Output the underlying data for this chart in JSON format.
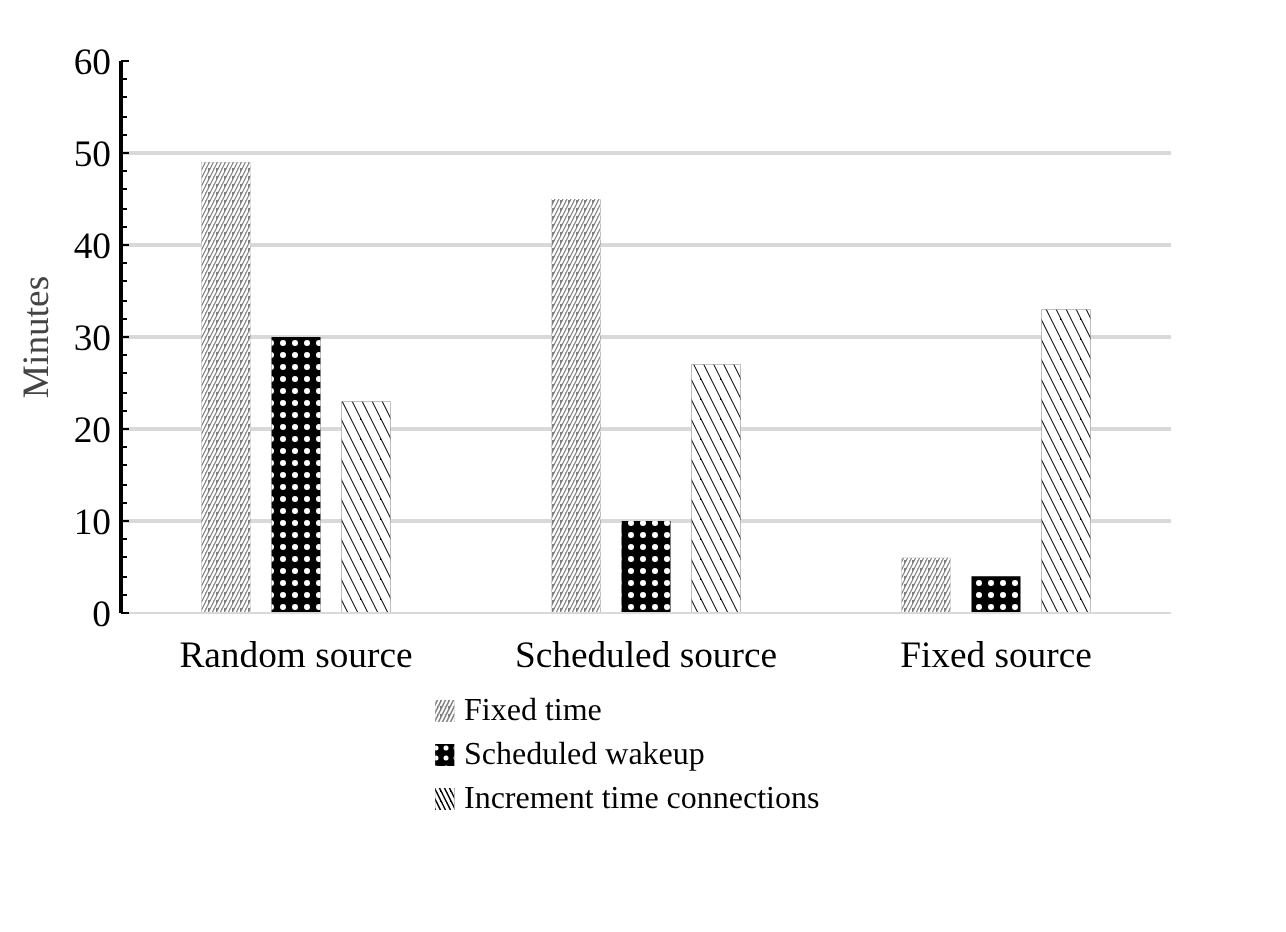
{
  "chart_data": {
    "type": "bar",
    "ylabel": "Minutes",
    "categories": [
      "Random source",
      "Scheduled source",
      "Fixed source"
    ],
    "series": [
      {
        "name": "Fixed time",
        "color": "#808080",
        "values": [
          49,
          45,
          6
        ]
      },
      {
        "name": "Scheduled wakeup",
        "color": "#000000",
        "values": [
          30,
          10,
          4
        ]
      },
      {
        "name": "Increment time connections",
        "color": "#000000",
        "values": [
          23,
          27,
          33
        ]
      }
    ],
    "ylim": [
      0,
      60
    ],
    "yticks": [
      0,
      10,
      20,
      30,
      40,
      50,
      60
    ],
    "grid": "y",
    "legend": "bottom"
  }
}
